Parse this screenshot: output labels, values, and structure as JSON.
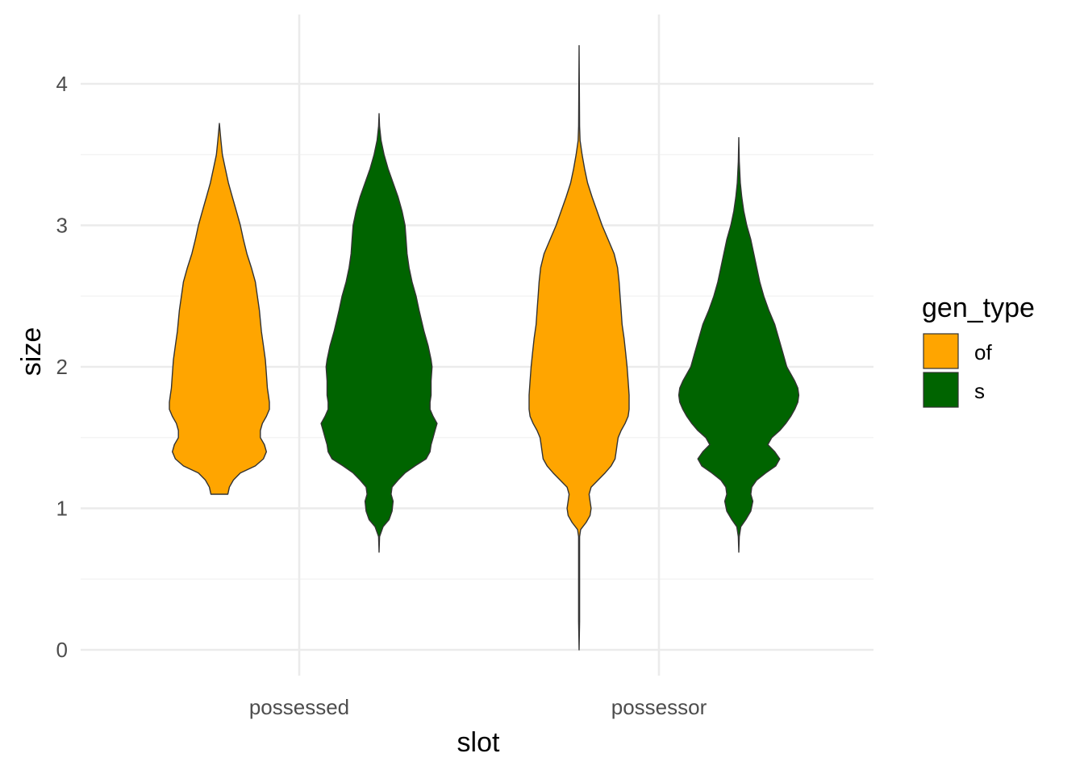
{
  "chart_data": {
    "type": "violin",
    "xlabel": "slot",
    "ylabel": "size",
    "categories": [
      "possessed",
      "possessor"
    ],
    "ylim": [
      -0.15,
      4.5
    ],
    "y_ticks": [
      0,
      1,
      2,
      3,
      4
    ],
    "grid": true,
    "legend": {
      "title": "gen_type",
      "placement": "right",
      "entries": [
        {
          "label": "of",
          "color": "#FFA500"
        },
        {
          "label": "s",
          "color": "#006400"
        }
      ]
    },
    "series": [
      {
        "name": "of",
        "color": "#FFA500",
        "violins": [
          {
            "category": "possessed",
            "y_range": [
              1.1,
              3.72
            ],
            "density": [
              [
                1.1,
                0.17
              ],
              [
                1.15,
                0.2
              ],
              [
                1.2,
                0.28
              ],
              [
                1.25,
                0.42
              ],
              [
                1.3,
                0.72
              ],
              [
                1.35,
                0.88
              ],
              [
                1.4,
                0.94
              ],
              [
                1.45,
                0.9
              ],
              [
                1.5,
                0.82
              ],
              [
                1.55,
                0.82
              ],
              [
                1.6,
                0.86
              ],
              [
                1.65,
                0.94
              ],
              [
                1.7,
                1.0
              ],
              [
                1.75,
                1.0
              ],
              [
                1.8,
                0.98
              ],
              [
                1.85,
                0.96
              ],
              [
                1.95,
                0.94
              ],
              [
                2.05,
                0.92
              ],
              [
                2.15,
                0.88
              ],
              [
                2.25,
                0.84
              ],
              [
                2.4,
                0.8
              ],
              [
                2.5,
                0.76
              ],
              [
                2.6,
                0.72
              ],
              [
                2.7,
                0.64
              ],
              [
                2.8,
                0.55
              ],
              [
                2.9,
                0.48
              ],
              [
                3.0,
                0.42
              ],
              [
                3.1,
                0.34
              ],
              [
                3.2,
                0.26
              ],
              [
                3.3,
                0.18
              ],
              [
                3.4,
                0.12
              ],
              [
                3.5,
                0.06
              ],
              [
                3.6,
                0.03
              ],
              [
                3.72,
                0.0
              ]
            ]
          },
          {
            "category": "possessor",
            "y_range": [
              0.0,
              4.27
            ],
            "density": [
              [
                0.0,
                0.0
              ],
              [
                0.2,
                0.01
              ],
              [
                0.5,
                0.01
              ],
              [
                0.8,
                0.01
              ],
              [
                0.85,
                0.03
              ],
              [
                0.9,
                0.14
              ],
              [
                0.95,
                0.22
              ],
              [
                1.0,
                0.24
              ],
              [
                1.05,
                0.22
              ],
              [
                1.1,
                0.2
              ],
              [
                1.15,
                0.24
              ],
              [
                1.2,
                0.38
              ],
              [
                1.25,
                0.52
              ],
              [
                1.3,
                0.64
              ],
              [
                1.35,
                0.72
              ],
              [
                1.4,
                0.74
              ],
              [
                1.45,
                0.76
              ],
              [
                1.5,
                0.78
              ],
              [
                1.55,
                0.84
              ],
              [
                1.6,
                0.92
              ],
              [
                1.65,
                0.98
              ],
              [
                1.7,
                1.0
              ],
              [
                1.8,
                1.0
              ],
              [
                1.9,
                0.98
              ],
              [
                2.0,
                0.96
              ],
              [
                2.1,
                0.93
              ],
              [
                2.2,
                0.9
              ],
              [
                2.3,
                0.86
              ],
              [
                2.4,
                0.84
              ],
              [
                2.5,
                0.82
              ],
              [
                2.6,
                0.8
              ],
              [
                2.7,
                0.77
              ],
              [
                2.8,
                0.7
              ],
              [
                2.9,
                0.58
              ],
              [
                3.0,
                0.46
              ],
              [
                3.1,
                0.36
              ],
              [
                3.2,
                0.26
              ],
              [
                3.3,
                0.17
              ],
              [
                3.4,
                0.11
              ],
              [
                3.5,
                0.06
              ],
              [
                3.6,
                0.02
              ],
              [
                3.7,
                0.01
              ],
              [
                4.27,
                0.0
              ]
            ]
          }
        ]
      },
      {
        "name": "s",
        "color": "#006400",
        "violins": [
          {
            "category": "possessed",
            "y_range": [
              0.69,
              3.79
            ],
            "density": [
              [
                0.69,
                0.0
              ],
              [
                0.8,
                0.01
              ],
              [
                0.87,
                0.08
              ],
              [
                0.92,
                0.2
              ],
              [
                0.98,
                0.26
              ],
              [
                1.05,
                0.28
              ],
              [
                1.1,
                0.24
              ],
              [
                1.15,
                0.26
              ],
              [
                1.2,
                0.38
              ],
              [
                1.25,
                0.52
              ],
              [
                1.3,
                0.72
              ],
              [
                1.35,
                0.94
              ],
              [
                1.4,
                1.02
              ],
              [
                1.45,
                1.04
              ],
              [
                1.5,
                1.08
              ],
              [
                1.55,
                1.12
              ],
              [
                1.6,
                1.16
              ],
              [
                1.65,
                1.08
              ],
              [
                1.7,
                1.02
              ],
              [
                1.75,
                1.02
              ],
              [
                1.8,
                1.04
              ],
              [
                1.9,
                1.04
              ],
              [
                2.0,
                1.06
              ],
              [
                2.05,
                1.04
              ],
              [
                2.15,
                0.98
              ],
              [
                2.25,
                0.9
              ],
              [
                2.4,
                0.8
              ],
              [
                2.5,
                0.74
              ],
              [
                2.6,
                0.66
              ],
              [
                2.7,
                0.6
              ],
              [
                2.8,
                0.56
              ],
              [
                2.9,
                0.54
              ],
              [
                3.0,
                0.52
              ],
              [
                3.1,
                0.46
              ],
              [
                3.2,
                0.38
              ],
              [
                3.3,
                0.28
              ],
              [
                3.4,
                0.18
              ],
              [
                3.5,
                0.1
              ],
              [
                3.6,
                0.04
              ],
              [
                3.7,
                0.01
              ],
              [
                3.79,
                0.0
              ]
            ]
          },
          {
            "category": "possessor",
            "y_range": [
              0.69,
              3.62
            ],
            "density": [
              [
                0.69,
                0.0
              ],
              [
                0.8,
                0.01
              ],
              [
                0.87,
                0.04
              ],
              [
                0.92,
                0.14
              ],
              [
                0.98,
                0.24
              ],
              [
                1.05,
                0.28
              ],
              [
                1.1,
                0.24
              ],
              [
                1.15,
                0.26
              ],
              [
                1.2,
                0.36
              ],
              [
                1.25,
                0.54
              ],
              [
                1.3,
                0.74
              ],
              [
                1.35,
                0.82
              ],
              [
                1.4,
                0.72
              ],
              [
                1.45,
                0.58
              ],
              [
                1.5,
                0.66
              ],
              [
                1.55,
                0.82
              ],
              [
                1.6,
                0.94
              ],
              [
                1.65,
                1.04
              ],
              [
                1.7,
                1.12
              ],
              [
                1.75,
                1.18
              ],
              [
                1.8,
                1.2
              ],
              [
                1.85,
                1.18
              ],
              [
                1.9,
                1.12
              ],
              [
                1.95,
                1.04
              ],
              [
                2.0,
                0.96
              ],
              [
                2.1,
                0.88
              ],
              [
                2.2,
                0.8
              ],
              [
                2.3,
                0.72
              ],
              [
                2.4,
                0.6
              ],
              [
                2.5,
                0.5
              ],
              [
                2.6,
                0.42
              ],
              [
                2.7,
                0.36
              ],
              [
                2.8,
                0.3
              ],
              [
                2.9,
                0.24
              ],
              [
                3.0,
                0.16
              ],
              [
                3.1,
                0.1
              ],
              [
                3.2,
                0.06
              ],
              [
                3.3,
                0.03
              ],
              [
                3.45,
                0.01
              ],
              [
                3.62,
                0.0
              ]
            ]
          }
        ]
      }
    ]
  }
}
